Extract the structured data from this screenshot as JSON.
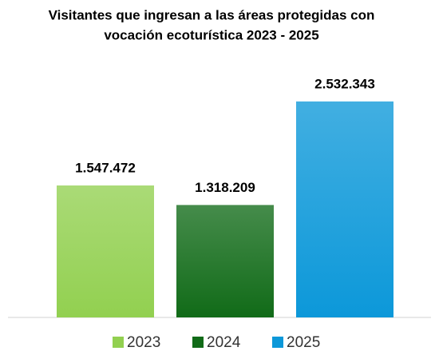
{
  "chart_data": {
    "type": "bar",
    "title": [
      "Visitantes que ingresan a las áreas protegidas con",
      "vocación ecoturística 2023 - 2025"
    ],
    "categories": [
      "2023",
      "2024",
      "2025"
    ],
    "values": [
      1547472,
      1318209,
      2532343
    ],
    "value_labels": [
      "1.547.472",
      "1.318.209",
      "2.532.343"
    ],
    "colors": [
      "#92d050",
      "#116b18",
      "#0c98d9"
    ],
    "ylim": [
      0,
      3000000
    ]
  }
}
